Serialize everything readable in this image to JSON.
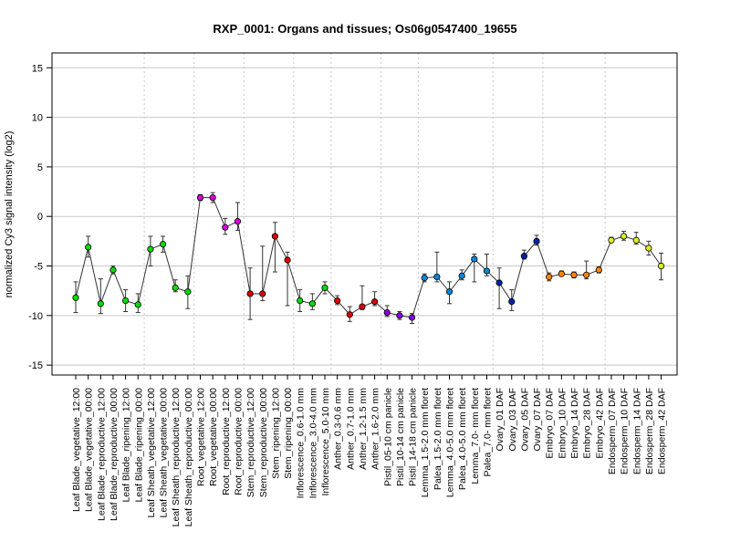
{
  "chart_data": {
    "type": "line",
    "title": "RXP_0001: Organs and tissues; Os06g0547400_19655",
    "xlabel": "",
    "ylabel": "normalized Cy3 signal intensity (log2)",
    "ylim": [
      -16,
      16.5
    ],
    "yticks": [
      -15,
      -10,
      -5,
      0,
      5,
      10,
      15
    ],
    "grid": "horizontal lines at y ticks, vertical dotted separators between tissue groups",
    "legend": "none",
    "categories": [
      "Leaf Blade_vegetative_12:00",
      "Leaf Blade_vegetative_00:00",
      "Leaf Blade_reproductive_12:00",
      "Leaf Blade_reproductive_00:00",
      "Leaf Blade_ripening_12:00",
      "Leaf Blade_ripening_00:00",
      "Leaf Sheath_vegetative_12:00",
      "Leaf Sheath_vegetative_00:00",
      "Leaf Sheath_reproductive_12:00",
      "Leaf Sheath_reproductive_00:00",
      "Root_vegetative_12:00",
      "Root_vegetative_00:00",
      "Root_reproductive_12:00",
      "Root_reproductive_00:00",
      "Stem_reproductive_12:00",
      "Stem_reproductive_00:00",
      "Stem_ripening_12:00",
      "Stem_ripening_00:00",
      "Inflorescence_0.6-1.0 mm",
      "Inflorescence_3.0-4.0 mm",
      "Inflorescence_5.0-10 mm",
      "Anther_0.3-0.6 mm",
      "Anther_0.7-1.0 mm",
      "Anther_1.2-1.5 mm",
      "Anther_1.6-2.0 mm",
      "Pistil_05-10 cm panicle",
      "Pistil_10-14 cm panicle",
      "Pistil_14-18 cm panicle",
      "Lemma_1.5-2.0 mm floret",
      "Palea_1.5-2.0 mm floret",
      "Lemma_4.0-5.0 mm floret",
      "Palea_4.0-5.0 mm floret",
      "Lemma_7.0- mm floret",
      "Palea_7.0- mm floret",
      "Ovary_01 DAF",
      "Ovary_03 DAF",
      "Ovary_05 DAF",
      "Ovary_07 DAF",
      "Embryo_07 DAF",
      "Embryo_10 DAF",
      "Embryo_14 DAF",
      "Embryo_28 DAF",
      "Embryo_42 DAF",
      "Endosperm_07 DAF",
      "Endosperm_10 DAF",
      "Endosperm_14 DAF",
      "Endosperm_28 DAF",
      "Endosperm_42 DAF"
    ],
    "series": [
      {
        "values": [
          -8.2,
          -3.1,
          -8.8,
          -5.4,
          -8.5,
          -8.9,
          -3.3,
          -2.8,
          -7.2,
          -7.6,
          1.9,
          1.9,
          -1.1,
          -0.5,
          -7.8,
          -7.8,
          -2.0,
          -4.4,
          -8.5,
          -8.8,
          -7.2,
          -8.5,
          -9.9,
          -9.1,
          -8.6,
          -9.7,
          -10.0,
          -10.2,
          -6.2,
          -6.1,
          -7.6,
          -6.0,
          -4.3,
          -5.5,
          -6.7,
          -8.6,
          -4.0,
          -2.5,
          -6.1,
          -5.8,
          -5.9,
          -5.9,
          -5.4,
          -2.4,
          -2.0,
          -2.4,
          -3.2,
          -5.0
        ],
        "lower": [
          -9.7,
          -4.1,
          -9.8,
          -5.8,
          -9.6,
          -9.7,
          -5.0,
          -3.6,
          -7.6,
          -9.3,
          1.6,
          1.4,
          -1.8,
          -1.4,
          -10.4,
          -8.5,
          -5.6,
          -9.0,
          -9.6,
          -9.4,
          -7.8,
          -8.9,
          -10.6,
          -9.4,
          -9.0,
          -10.1,
          -10.4,
          -10.8,
          -6.6,
          -6.6,
          -8.8,
          -6.4,
          -6.6,
          -6.0,
          -9.3,
          -9.5,
          -4.3,
          -2.9,
          -6.5,
          -6.0,
          -6.2,
          -6.3,
          -5.7,
          -2.6,
          -2.4,
          -2.8,
          -3.9,
          -6.4
        ],
        "upper": [
          -6.6,
          -2.0,
          -6.3,
          -5.0,
          -7.4,
          -7.8,
          -2.0,
          -2.0,
          -6.4,
          -6.0,
          2.2,
          2.4,
          -0.2,
          1.4,
          -5.2,
          -3.0,
          -0.6,
          -3.6,
          -7.4,
          -7.8,
          -6.6,
          -8.0,
          -9.1,
          -7.0,
          -7.6,
          -9.0,
          -9.6,
          -9.8,
          -5.8,
          -3.6,
          -6.6,
          -5.4,
          -3.8,
          -3.8,
          -5.2,
          -7.4,
          -3.4,
          -1.9,
          -5.7,
          -5.5,
          -5.6,
          -4.5,
          -5.1,
          -2.1,
          -1.5,
          -1.6,
          -2.5,
          -3.7
        ],
        "colors": [
          "#00dd00",
          "#00dd00",
          "#00dd00",
          "#00dd00",
          "#00dd00",
          "#00dd00",
          "#00dd00",
          "#00dd00",
          "#00dd00",
          "#00dd00",
          "#dd00dd",
          "#dd00dd",
          "#dd00dd",
          "#dd00dd",
          "#dd0000",
          "#dd0000",
          "#dd0000",
          "#dd0000",
          "#00dd00",
          "#00dd00",
          "#00dd00",
          "#dd0000",
          "#dd0000",
          "#dd0000",
          "#dd0000",
          "#8800dd",
          "#8800dd",
          "#8800dd",
          "#0088dd",
          "#0088dd",
          "#0088dd",
          "#0088dd",
          "#0088dd",
          "#0088dd",
          "#0022aa",
          "#0022aa",
          "#0022aa",
          "#0022aa",
          "#ff8800",
          "#ff8800",
          "#ff8800",
          "#ff8800",
          "#ff8800",
          "#ddee22",
          "#ddee22",
          "#ddee22",
          "#ddee22",
          "#ddee22"
        ]
      }
    ],
    "group_separators_after_index": [
      5,
      9,
      13,
      17,
      20,
      24,
      27,
      33,
      37,
      42
    ]
  }
}
